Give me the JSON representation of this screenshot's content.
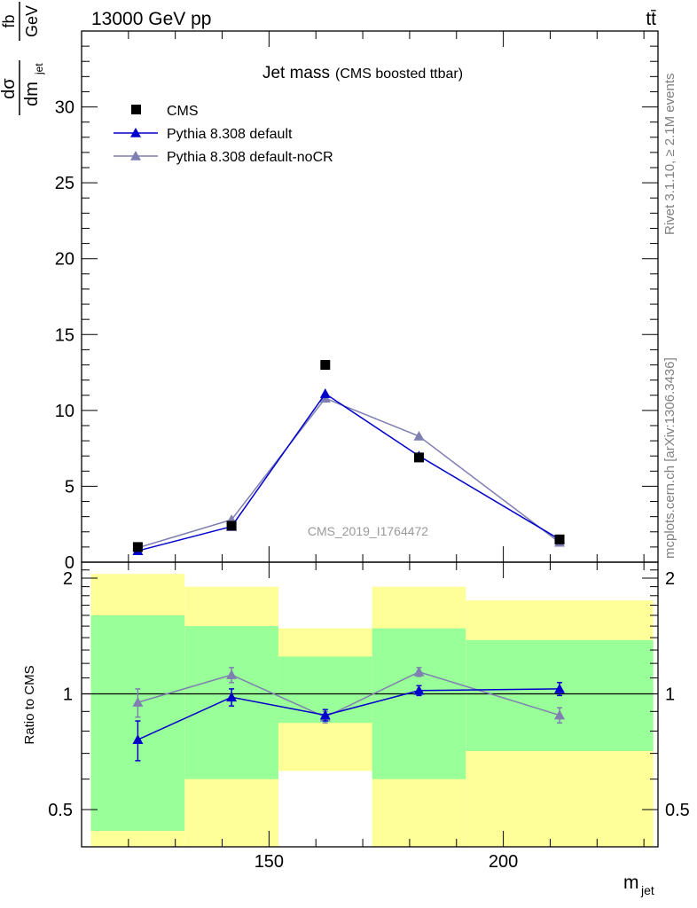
{
  "header": {
    "left": "13000 GeV pp",
    "right": "tt̄"
  },
  "side_labels": {
    "rivet": "Rivet 3.1.10, ≥ 2.1M events",
    "mcplots": "mcplots.cern.ch [arXiv:1306.3436]"
  },
  "chart_data": {
    "type": "scatter",
    "title": "Jet mass",
    "subtitle": "(CMS boosted ttbar)",
    "watermark": "CMS_2019_I1764472",
    "ylabel": "dσ / dm_jet  fb / GeV",
    "ylabel_num": "dσ",
    "ylabel_den": "dm",
    "ylabel_den_sub": "jet",
    "ylabel_unit_num": "fb",
    "ylabel_unit_den": "GeV",
    "xlabel": "m",
    "xlabel_sub": "jet",
    "ratio_ylabel": "Ratio to CMS",
    "xlim": [
      110,
      233
    ],
    "ylim": [
      0,
      35
    ],
    "ratio_ylim": [
      0.4,
      2.2
    ],
    "ratio_log": true,
    "x_ticks": [
      "150",
      "200"
    ],
    "y_ticks": [
      "0",
      "5",
      "10",
      "15",
      "20",
      "25",
      "30"
    ],
    "ratio_ticks": [
      "0.5",
      "1",
      "2"
    ],
    "legend_position": "top-left",
    "bins": [
      [
        112,
        132
      ],
      [
        132,
        152
      ],
      [
        152,
        172
      ],
      [
        172,
        192
      ],
      [
        192,
        232
      ]
    ],
    "band_inner": [
      [
        0.44,
        1.6
      ],
      [
        0.6,
        1.5
      ],
      [
        0.84,
        1.25
      ],
      [
        0.6,
        1.48
      ],
      [
        0.71,
        1.38
      ]
    ],
    "band_outer": [
      [
        0.4,
        2.05
      ],
      [
        0.4,
        1.9
      ],
      [
        0.63,
        1.48
      ],
      [
        0.4,
        1.9
      ],
      [
        0.4,
        1.75
      ]
    ],
    "series": [
      {
        "name": "CMS",
        "marker": "square",
        "color": "#000000",
        "x": [
          122,
          142,
          162,
          182,
          212
        ],
        "y": [
          1.0,
          2.4,
          13.0,
          6.9,
          1.5
        ],
        "yerr": [
          0.1,
          0.15,
          0.2,
          0.3,
          0.1
        ]
      },
      {
        "name": "Pythia 8.308 default",
        "marker": "triangle",
        "color": "#0000cc",
        "x": [
          122,
          142,
          162,
          182,
          212
        ],
        "y": [
          0.75,
          2.35,
          11.1,
          7.0,
          1.5
        ],
        "yerr": [
          0.05,
          0.1,
          0.3,
          0.2,
          0.05
        ],
        "ratio": [
          0.76,
          0.98,
          0.88,
          1.02,
          1.03
        ],
        "ratio_err": [
          0.09,
          0.05,
          0.03,
          0.03,
          0.04
        ]
      },
      {
        "name": "Pythia 8.308 default-noCR",
        "marker": "triangle",
        "color": "#7f7fb2",
        "x": [
          122,
          142,
          162,
          182,
          212
        ],
        "y": [
          0.95,
          2.8,
          10.8,
          8.3,
          1.3
        ],
        "yerr": [
          0.05,
          0.1,
          0.25,
          0.2,
          0.05
        ],
        "ratio": [
          0.95,
          1.12,
          0.87,
          1.14,
          0.88
        ],
        "ratio_err": [
          0.08,
          0.05,
          0.03,
          0.03,
          0.04
        ]
      }
    ]
  }
}
